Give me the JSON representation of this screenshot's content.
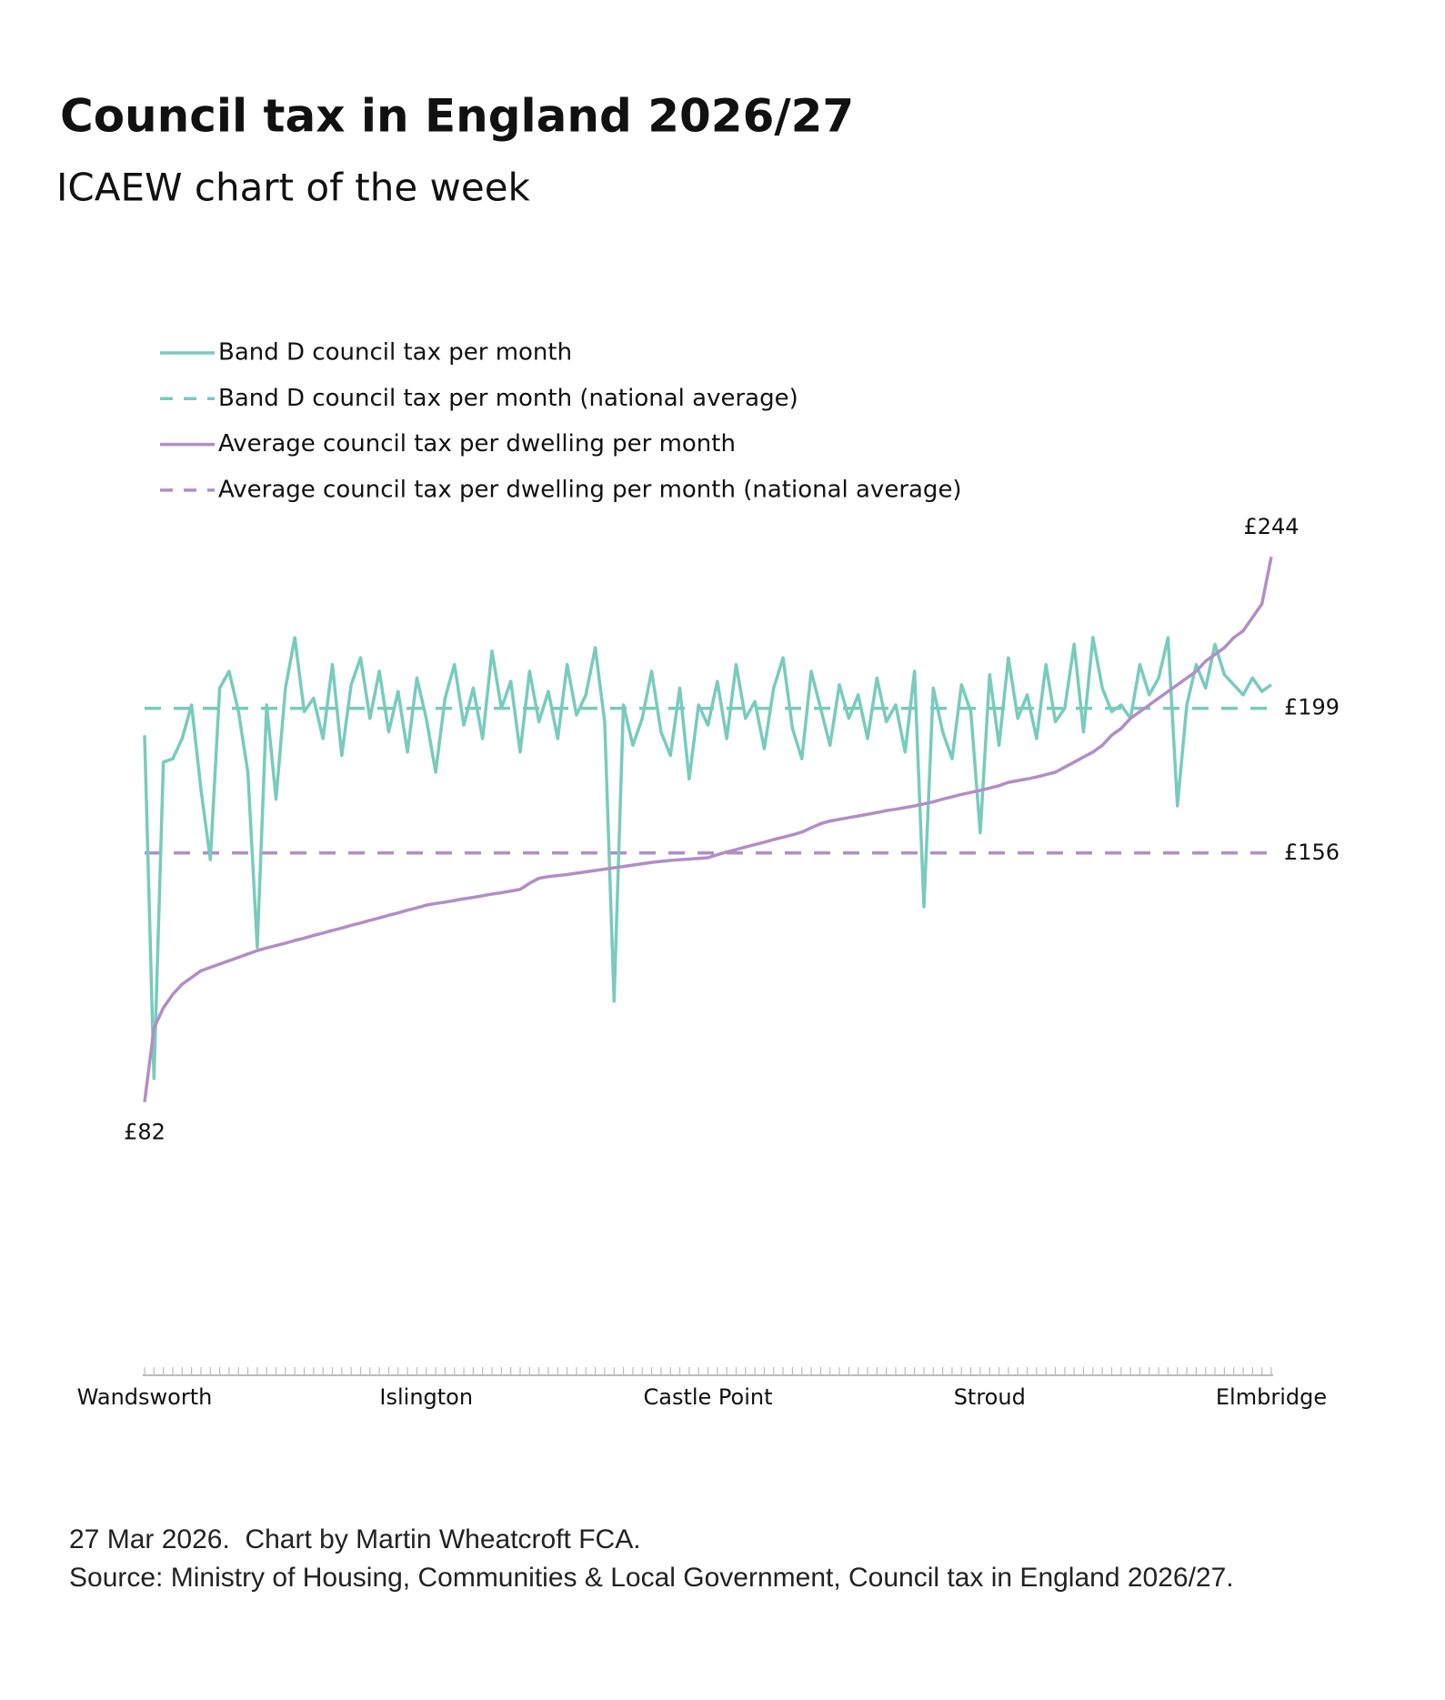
{
  "chart_data": {
    "type": "line",
    "title": "Council tax in England 2026/27",
    "subtitle": "ICAEW chart of the week",
    "categories": [
      "Wandsworth",
      null,
      null,
      null,
      null,
      null,
      null,
      null,
      null,
      null,
      null,
      null,
      null,
      null,
      null,
      null,
      null,
      null,
      null,
      null,
      null,
      null,
      null,
      null,
      null,
      null,
      null,
      null,
      null,
      null,
      "Islington",
      null,
      null,
      null,
      null,
      null,
      null,
      null,
      null,
      null,
      null,
      null,
      null,
      null,
      null,
      null,
      null,
      null,
      null,
      null,
      null,
      null,
      null,
      null,
      null,
      null,
      null,
      null,
      null,
      null,
      "Castle Point",
      null,
      null,
      null,
      null,
      null,
      null,
      null,
      null,
      null,
      null,
      null,
      null,
      null,
      null,
      null,
      null,
      null,
      null,
      null,
      null,
      null,
      null,
      null,
      null,
      null,
      null,
      null,
      null,
      null,
      "Stroud",
      null,
      null,
      null,
      null,
      null,
      null,
      null,
      null,
      null,
      null,
      null,
      null,
      null,
      null,
      null,
      null,
      null,
      null,
      null,
      null,
      null,
      null,
      null,
      null,
      null,
      null,
      null,
      null,
      null,
      "Elmbridge"
    ],
    "series": [
      {
        "name": "Band D council tax per month",
        "color": "#78cbbd",
        "values": [
          191,
          89,
          183,
          184,
          190,
          200,
          175,
          154,
          205,
          210,
          198,
          180,
          128,
          200,
          172,
          205,
          220,
          198,
          202,
          190,
          212,
          185,
          206,
          214,
          196,
          210,
          192,
          204,
          186,
          208,
          196,
          180,
          202,
          212,
          194,
          205,
          190,
          216,
          199,
          207,
          186,
          210,
          195,
          204,
          190,
          212,
          197,
          203,
          217,
          195,
          112,
          200,
          188,
          196,
          210,
          192,
          185,
          205,
          178,
          200,
          194,
          207,
          190,
          212,
          196,
          201,
          187,
          205,
          214,
          193,
          184,
          210,
          199,
          188,
          206,
          196,
          203,
          190,
          208,
          195,
          200,
          186,
          210,
          140,
          205,
          192,
          184,
          206,
          198,
          162,
          209,
          188,
          214,
          196,
          203,
          190,
          212,
          195,
          199,
          218,
          192,
          220,
          205,
          198,
          200,
          196,
          212,
          203,
          208,
          220,
          170,
          200,
          212,
          205,
          218,
          209,
          206,
          203,
          208,
          204,
          206
        ]
      },
      {
        "name": "Average council tax per dwelling per month",
        "color": "#b18ec6",
        "values": [
          82,
          104,
          110,
          114,
          117,
          119,
          121,
          122,
          123,
          124,
          125,
          126,
          127,
          127.8,
          128.5,
          129.2,
          130,
          130.7,
          131.5,
          132.2,
          133,
          133.7,
          134.5,
          135.2,
          136,
          136.7,
          137.5,
          138.2,
          139,
          139.7,
          140.5,
          141,
          141.4,
          141.9,
          142.4,
          142.8,
          143.3,
          143.8,
          144.2,
          144.7,
          145.2,
          147,
          148.5,
          149,
          149.3,
          149.6,
          150,
          150.4,
          150.8,
          151.2,
          151.6,
          152,
          152.4,
          152.8,
          153.2,
          153.5,
          153.8,
          154,
          154.2,
          154.4,
          154.6,
          155.5,
          156.3,
          157,
          157.8,
          158.5,
          159.2,
          160,
          160.7,
          161.4,
          162.2,
          163.5,
          164.7,
          165.5,
          166,
          166.5,
          167,
          167.5,
          168,
          168.6,
          169,
          169.5,
          170,
          170.6,
          171.2,
          172,
          172.7,
          173.4,
          174,
          174.6,
          175.3,
          176,
          177,
          177.5,
          178,
          178.6,
          179.3,
          180,
          181.5,
          183,
          184.5,
          186,
          188,
          191,
          193,
          196,
          198,
          200,
          202,
          204,
          206,
          208,
          210,
          213,
          215,
          217,
          220,
          222,
          226,
          230,
          244
        ],
        "value_labels": [
          "£82",
          null,
          null,
          null,
          null,
          null,
          null,
          null,
          null,
          null,
          null,
          null,
          null,
          null,
          null,
          null,
          null,
          null,
          null,
          null,
          null,
          null,
          null,
          null,
          null,
          null,
          null,
          null,
          null,
          null,
          null,
          null,
          null,
          null,
          null,
          null,
          null,
          null,
          null,
          null,
          null,
          null,
          null,
          null,
          null,
          null,
          null,
          null,
          null,
          null,
          null,
          null,
          null,
          null,
          null,
          null,
          null,
          null,
          null,
          null,
          null,
          null,
          null,
          null,
          null,
          null,
          null,
          null,
          null,
          null,
          null,
          null,
          null,
          null,
          null,
          null,
          null,
          null,
          null,
          null,
          null,
          null,
          null,
          null,
          null,
          null,
          null,
          null,
          null,
          null,
          null,
          null,
          null,
          null,
          null,
          null,
          null,
          null,
          null,
          null,
          null,
          null,
          null,
          null,
          null,
          null,
          null,
          null,
          null,
          null,
          null,
          null,
          null,
          null,
          null,
          null,
          null,
          null,
          null,
          null,
          "£244"
        ]
      }
    ],
    "reference_lines": [
      {
        "name": "Band D council tax per month (national average)",
        "color": "#78cbbd",
        "dashed": true,
        "value": 199,
        "value_label": "£199"
      },
      {
        "name": "Average council tax per dwelling per month (national average)",
        "color": "#b18ec6",
        "dashed": true,
        "value": 156,
        "value_label": "£156"
      }
    ],
    "ylim": [
      0,
      260
    ],
    "grid": false,
    "legend": "top-left"
  },
  "footer": {
    "credit": "27 Mar 2026.  Chart by Martin Wheatcroft FCA.",
    "source": "Source: Ministry of Housing, Communities & Local Government, Council tax in England 2026/27."
  }
}
